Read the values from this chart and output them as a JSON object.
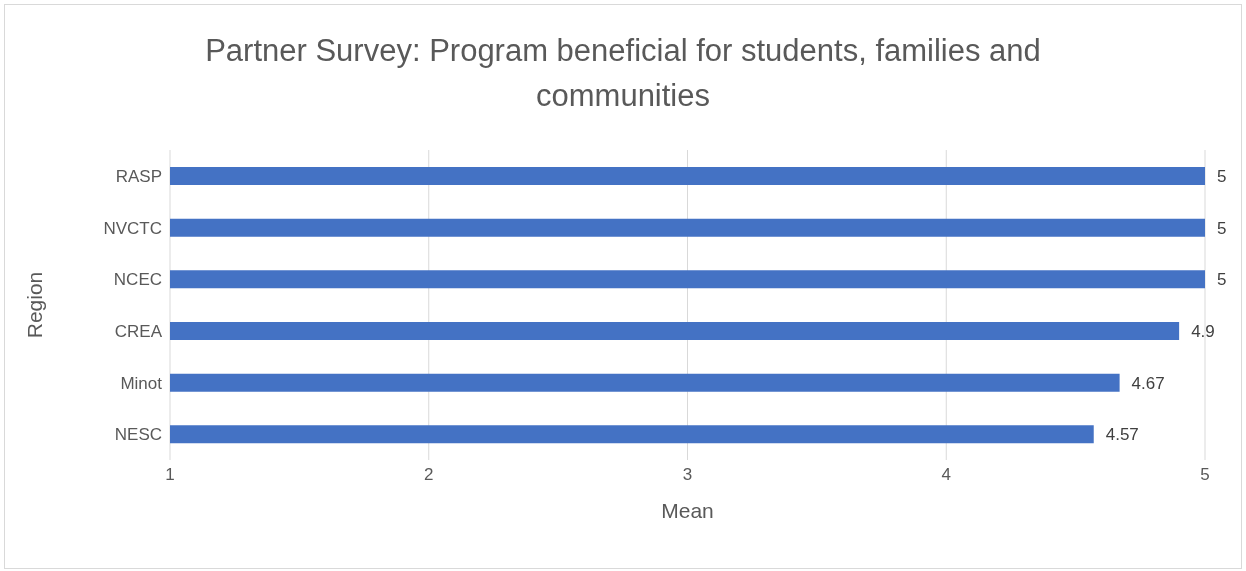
{
  "chart_data": {
    "type": "bar",
    "orientation": "horizontal",
    "title": "Partner Survey: Program beneficial for students, families and communities",
    "xlabel": "Mean",
    "ylabel": "Region",
    "categories": [
      "RASP",
      "NVCTC",
      "NCEC",
      "CREA",
      "Minot",
      "NESC"
    ],
    "values": [
      5,
      5,
      5,
      4.9,
      4.67,
      4.57
    ],
    "color": "#4472c4",
    "xlim": [
      1,
      5
    ],
    "xticks": [
      1,
      2,
      3,
      4,
      5
    ],
    "grid": "x",
    "data_labels": true
  }
}
